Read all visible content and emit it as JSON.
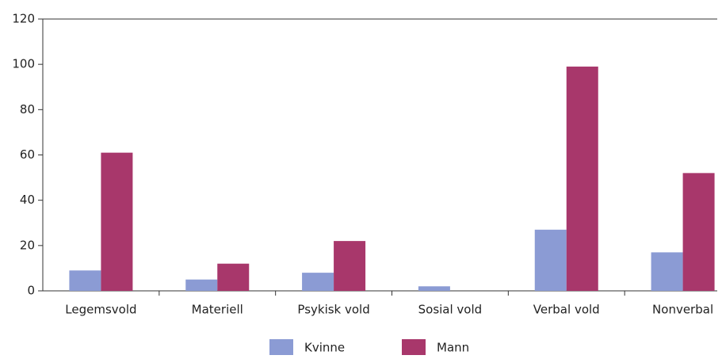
{
  "chart_data": {
    "type": "bar",
    "categories": [
      "Legemsvold",
      "Materiell",
      "Psykisk vold",
      "Sosial vold",
      "Verbal vold",
      "Nonverbal"
    ],
    "series": [
      {
        "name": "Kvinne",
        "color": "#8b9bd4",
        "values": [
          9,
          5,
          8,
          2,
          27,
          17
        ]
      },
      {
        "name": "Mann",
        "color": "#a8376b",
        "values": [
          61,
          12,
          22,
          0,
          99,
          52
        ]
      }
    ],
    "ylim": [
      0,
      120
    ],
    "yticks": [
      0,
      20,
      40,
      60,
      80,
      100,
      120
    ],
    "grid": false,
    "legend": "bottom"
  }
}
